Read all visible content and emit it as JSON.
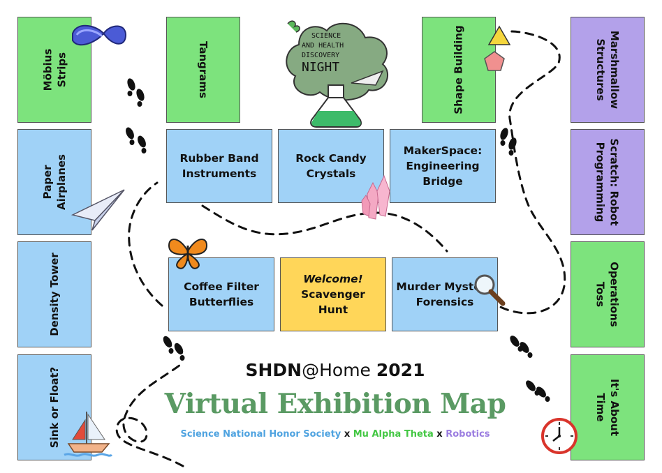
{
  "colors": {
    "science": "#4fa3e0",
    "mu_alpha_theta": "#43c743",
    "robotics": "#9b7de0",
    "green_tile": "#7de37d",
    "blue_tile": "#a0d2f7",
    "purple_tile": "#b3a1ea",
    "yellow_tile": "#ffd659",
    "title_green": "#5a9a63"
  },
  "logo": {
    "line1": "SCIENCE",
    "line2": "AND HEALTH",
    "line3": "DISCOVERY",
    "line4": "NIGHT"
  },
  "tiles": {
    "mobius": "Möbius\nStrips",
    "tangrams": "Tangrams",
    "shape_building": "Shape Building",
    "marshmallow": "Marshmallow\nStructures",
    "paper_airplanes": "Paper\nAirplanes",
    "rubber_band": "Rubber Band\nInstruments",
    "rock_candy": "Rock Candy\nCrystals",
    "makerspace": "MakerSpace:\nEngineering\nBridge",
    "scratch": "Scratch: Robot\nProgramming",
    "density": "Density Tower",
    "coffee_filter": "Coffee Filter\nButterflies",
    "welcome_title": "Welcome!",
    "welcome_sub": "Scavenger\nHunt",
    "murder": "Murder Mystery\nForensics",
    "operations": "Operations\nToss",
    "sink_float": "Sink or Float?",
    "about_time": "It's About\nTime"
  },
  "footer": {
    "shdn": "SHDN",
    "at_home": "@Home",
    "year": "2021",
    "map_title": "Virtual Exhibition Map",
    "org1": "Science National Honor Society",
    "sep": "x",
    "org2": "Mu Alpha Theta",
    "org3": "Robotics"
  }
}
